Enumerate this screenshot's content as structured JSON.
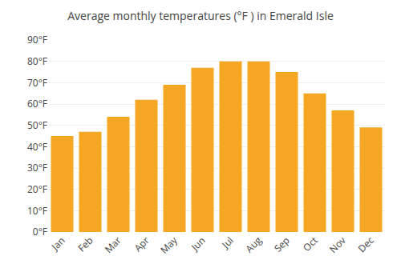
{
  "chart_data": {
    "type": "bar",
    "title": "Average monthly temperatures (°F ) in Emerald Isle",
    "categories": [
      "Jan",
      "Feb",
      "Mar",
      "Apr",
      "May",
      "Jun",
      "Jul",
      "Aug",
      "Sep",
      "Oct",
      "Nov",
      "Dec"
    ],
    "values": [
      45,
      47,
      54,
      62,
      69,
      77,
      80,
      80,
      75,
      65,
      57,
      49
    ],
    "color": "#F5A623",
    "ylim": [
      0,
      90
    ],
    "yticks": [
      {
        "value": 0,
        "label": "0°F"
      },
      {
        "value": 10,
        "label": "10°F"
      },
      {
        "value": 20,
        "label": "20°F"
      },
      {
        "value": 30,
        "label": "30°F"
      },
      {
        "value": 40,
        "label": "40°F"
      },
      {
        "value": 50,
        "label": "50°F"
      },
      {
        "value": 60,
        "label": "60°F"
      },
      {
        "value": 70,
        "label": "70°F"
      },
      {
        "value": 80,
        "label": "80°F"
      },
      {
        "value": 90,
        "label": "90°F"
      }
    ],
    "grid": true
  }
}
